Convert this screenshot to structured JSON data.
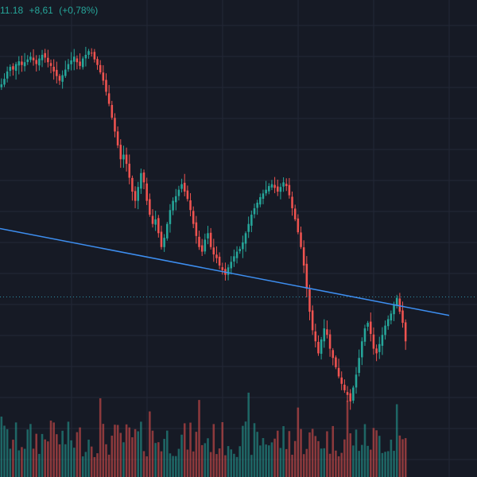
{
  "legend": {
    "close_fragment": "11.18",
    "change_abs": "+8,61",
    "change_pct": "(+0,78%)"
  },
  "colors": {
    "background": "#161a25",
    "grid": "#232836",
    "up": "#26a69a",
    "down": "#ef5350",
    "trendline": "#3d8ef0",
    "price_line": "#2f8fa8"
  },
  "chart_data": {
    "type": "candlestick",
    "title": "",
    "grid": true,
    "price_close_series": [
      1136,
      1142,
      1150,
      1155,
      1152,
      1158,
      1161,
      1157,
      1160,
      1163,
      1166,
      1162,
      1158,
      1164,
      1168,
      1165,
      1160,
      1156,
      1150,
      1145,
      1140,
      1146,
      1152,
      1158,
      1162,
      1166,
      1160,
      1156,
      1164,
      1168,
      1172,
      1170,
      1163,
      1157,
      1149,
      1140,
      1128,
      1115,
      1100,
      1085,
      1070,
      1055,
      1060,
      1050,
      1035,
      1020,
      1010,
      1025,
      1040,
      1030,
      1010,
      995,
      985,
      990,
      975,
      960,
      970,
      985,
      1000,
      1010,
      1015,
      1022,
      1028,
      1020,
      1012,
      1000,
      985,
      972,
      960,
      955,
      968,
      975,
      960,
      952,
      948,
      940,
      935,
      930,
      938,
      944,
      950,
      955,
      958,
      965,
      975,
      985,
      995,
      1002,
      1008,
      1014,
      1018,
      1022,
      1026,
      1028,
      1024,
      1020,
      1025,
      1030,
      1026,
      1016,
      1002,
      990,
      976,
      960,
      940,
      915,
      890,
      870,
      858,
      845,
      860,
      872,
      865,
      850,
      840,
      830,
      820,
      812,
      805,
      800,
      793,
      808,
      822,
      840,
      858,
      872,
      878,
      866,
      850,
      845,
      855,
      865,
      875,
      882,
      888,
      898,
      905,
      890,
      878,
      858
    ],
    "trendline_start_price": 980,
    "trendline_end_price": 886,
    "last_price_level": 906
  }
}
